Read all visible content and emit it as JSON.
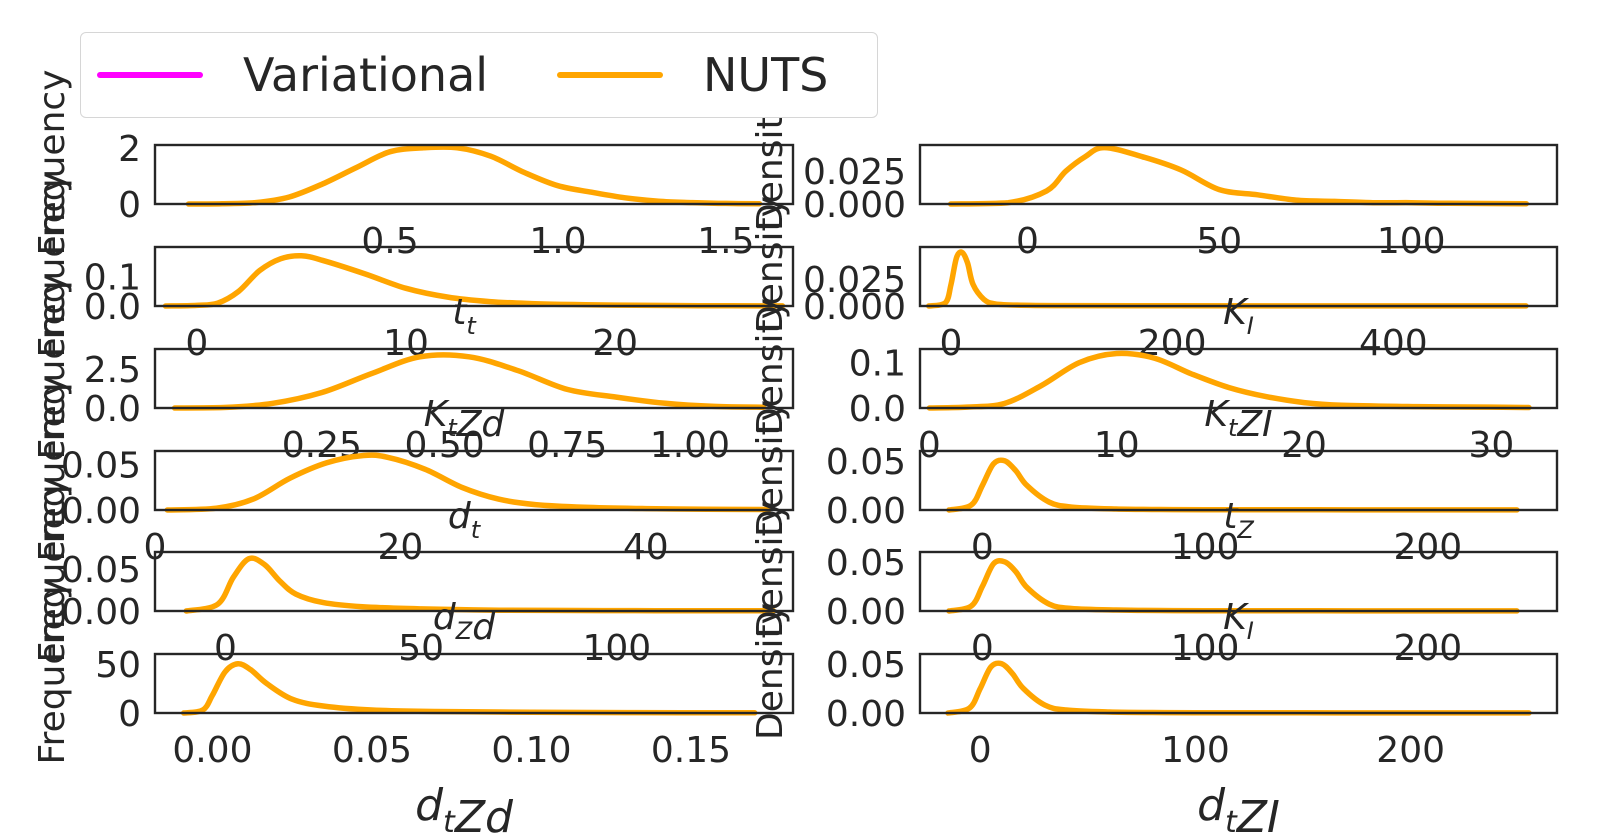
{
  "legend": {
    "items": [
      {
        "name": "Variational",
        "color": "#ff00ff"
      },
      {
        "name": "NUTS",
        "color": "#ffa500"
      }
    ]
  },
  "chart_data": [
    {
      "type": "line",
      "panel": "left-1",
      "xlabel": "",
      "ylabel": "Frequency",
      "xlim": [
        -0.2,
        1.7
      ],
      "ylim": [
        0,
        2.1
      ],
      "xticks": [
        "0.5",
        "1.0",
        "1.5"
      ],
      "yticks": [
        "0",
        "2"
      ],
      "series": [
        {
          "name": "NUTS",
          "x": [
            -0.1,
            0.0,
            0.1,
            0.2,
            0.3,
            0.4,
            0.5,
            0.6,
            0.7,
            0.8,
            0.9,
            1.0,
            1.1,
            1.2,
            1.3,
            1.4,
            1.5,
            1.6
          ],
          "y": [
            0,
            0.01,
            0.05,
            0.25,
            0.72,
            1.3,
            1.86,
            2.0,
            2.0,
            1.7,
            1.12,
            0.65,
            0.42,
            0.22,
            0.1,
            0.05,
            0.02,
            0.01
          ]
        }
      ]
    },
    {
      "type": "line",
      "panel": "right-1",
      "xlabel": "",
      "ylabel": "Density",
      "xlim": [
        -28,
        138
      ],
      "ylim": [
        0,
        0.045
      ],
      "xticks": [
        "0",
        "50",
        "100"
      ],
      "yticks": [
        "0.000",
        "0.025"
      ],
      "series": [
        {
          "name": "NUTS",
          "x": [
            -20,
            -5,
            5,
            10,
            15,
            20,
            30,
            40,
            50,
            60,
            70,
            80,
            90,
            100,
            110,
            130
          ],
          "y": [
            0,
            0.001,
            0.01,
            0.025,
            0.036,
            0.043,
            0.036,
            0.026,
            0.011,
            0.007,
            0.003,
            0.002,
            0.001,
            0.001,
            0.0005,
            0.0002
          ]
        }
      ]
    },
    {
      "type": "line",
      "panel": "left-2",
      "xlabel": "t_t",
      "ylabel": "Frequency",
      "xlim": [
        -2,
        28.5
      ],
      "ylim": [
        0,
        0.2
      ],
      "xticks": [
        "0",
        "10",
        "20"
      ],
      "yticks": [
        "0.0",
        "0.1"
      ],
      "series": [
        {
          "name": "NUTS",
          "x": [
            -1.5,
            0,
            1,
            2,
            3,
            4,
            5,
            6,
            8,
            10,
            12,
            14,
            16,
            18,
            20,
            24,
            28
          ],
          "y": [
            0,
            0.002,
            0.01,
            0.05,
            0.12,
            0.16,
            0.17,
            0.155,
            0.11,
            0.06,
            0.03,
            0.015,
            0.008,
            0.005,
            0.003,
            0.001,
            0.0005
          ]
        }
      ]
    },
    {
      "type": "line",
      "panel": "right-2",
      "xlabel": "K_I",
      "ylabel": "Density",
      "xlim": [
        -28,
        548
      ],
      "ylim": [
        0,
        0.055
      ],
      "xticks": [
        "0",
        "200",
        "400"
      ],
      "yticks": [
        "0.000",
        "0.025"
      ],
      "series": [
        {
          "name": "NUTS",
          "x": [
            -20,
            -5,
            0,
            5,
            10,
            15,
            20,
            30,
            40,
            60,
            100,
            200,
            300,
            400,
            520
          ],
          "y": [
            0,
            0.003,
            0.02,
            0.045,
            0.05,
            0.04,
            0.02,
            0.006,
            0.002,
            0.0008,
            0.0004,
            0.0002,
            0.0001,
            0.0001,
            0.0001
          ]
        }
      ]
    },
    {
      "type": "line",
      "panel": "left-3",
      "xlabel": "K_t Zd",
      "ylabel": "Frequency",
      "xlim": [
        -0.09,
        1.21
      ],
      "ylim": [
        0,
        3.8
      ],
      "xticks": [
        "0.25",
        "0.50",
        "0.75",
        "1.00"
      ],
      "yticks": [
        "0.0",
        "2.5"
      ],
      "series": [
        {
          "name": "NUTS",
          "x": [
            -0.05,
            0.05,
            0.15,
            0.25,
            0.35,
            0.45,
            0.55,
            0.65,
            0.75,
            0.85,
            0.95,
            1.05,
            1.15
          ],
          "y": [
            0,
            0.03,
            0.3,
            1.0,
            2.2,
            3.3,
            3.3,
            2.4,
            1.2,
            0.7,
            0.3,
            0.1,
            0.05
          ]
        }
      ]
    },
    {
      "type": "line",
      "panel": "right-3",
      "xlabel": "K_t ZI",
      "ylabel": "Density",
      "xlim": [
        -0.5,
        33.5
      ],
      "ylim": [
        0,
        0.13
      ],
      "xticks": [
        "0",
        "10",
        "20",
        "30"
      ],
      "yticks": [
        "0.0",
        "0.1"
      ],
      "series": [
        {
          "name": "NUTS",
          "x": [
            0,
            2,
            4,
            6,
            8,
            10,
            12,
            14,
            16,
            18,
            20,
            22,
            26,
            30,
            32
          ],
          "y": [
            0,
            0.002,
            0.01,
            0.05,
            0.1,
            0.12,
            0.11,
            0.075,
            0.045,
            0.025,
            0.012,
            0.006,
            0.003,
            0.002,
            0.001
          ]
        }
      ]
    },
    {
      "type": "line",
      "panel": "left-4",
      "xlabel": "d_t",
      "ylabel": "Frequency",
      "xlim": [
        0,
        52
      ],
      "ylim": [
        0,
        0.065
      ],
      "xticks": [
        "0",
        "20",
        "40"
      ],
      "yticks": [
        "0.00",
        "0.05"
      ],
      "series": [
        {
          "name": "NUTS",
          "x": [
            1,
            5,
            8,
            11,
            14,
            17,
            19,
            22,
            25,
            28,
            31,
            35,
            40,
            45,
            50
          ],
          "y": [
            0,
            0.002,
            0.012,
            0.035,
            0.052,
            0.06,
            0.058,
            0.045,
            0.025,
            0.012,
            0.006,
            0.003,
            0.0015,
            0.0008,
            0.0005
          ]
        }
      ]
    },
    {
      "type": "line",
      "panel": "right-4",
      "xlabel": "t_Z",
      "ylabel": "Density",
      "xlim": [
        -28,
        258
      ],
      "ylim": [
        0,
        0.06
      ],
      "xticks": [
        "0",
        "100",
        "200"
      ],
      "yticks": [
        "0.00",
        "0.05"
      ],
      "series": [
        {
          "name": "NUTS",
          "x": [
            -15,
            -5,
            0,
            5,
            10,
            15,
            20,
            30,
            40,
            60,
            80,
            100,
            150,
            200,
            240
          ],
          "y": [
            0,
            0.005,
            0.025,
            0.047,
            0.05,
            0.04,
            0.025,
            0.008,
            0.003,
            0.001,
            0.0005,
            0.0003,
            0.0002,
            0.0001,
            0.0001
          ]
        }
      ]
    },
    {
      "type": "line",
      "panel": "left-5",
      "xlabel": "d_Z d",
      "ylabel": "Frequency",
      "xlim": [
        -18,
        145
      ],
      "ylim": [
        0,
        0.07
      ],
      "xticks": [
        "0",
        "50",
        "100"
      ],
      "yticks": [
        "0.00",
        "0.05"
      ],
      "series": [
        {
          "name": "NUTS",
          "x": [
            -10,
            -2,
            2,
            6,
            10,
            14,
            18,
            25,
            35,
            50,
            70,
            90,
            110,
            140
          ],
          "y": [
            0,
            0.008,
            0.04,
            0.062,
            0.055,
            0.035,
            0.02,
            0.01,
            0.005,
            0.0025,
            0.001,
            0.0006,
            0.0004,
            0.0002
          ]
        }
      ]
    },
    {
      "type": "line",
      "panel": "right-5",
      "xlabel": "K_I",
      "ylabel": "Density",
      "xlim": [
        -28,
        258
      ],
      "ylim": [
        0,
        0.06
      ],
      "xticks": [
        "0",
        "100",
        "200"
      ],
      "yticks": [
        "0.00",
        "0.05"
      ],
      "series": [
        {
          "name": "NUTS",
          "x": [
            -15,
            -5,
            0,
            5,
            10,
            15,
            20,
            30,
            40,
            60,
            80,
            100,
            150,
            200,
            240
          ],
          "y": [
            0,
            0.005,
            0.025,
            0.048,
            0.05,
            0.04,
            0.024,
            0.007,
            0.0025,
            0.001,
            0.0005,
            0.0003,
            0.0002,
            0.0001,
            0.0001
          ]
        }
      ]
    },
    {
      "type": "line",
      "panel": "left-6",
      "xlabel": "d_t Zd",
      "ylabel": "Frequency",
      "xlim": [
        -0.018,
        0.182
      ],
      "ylim": [
        0,
        60
      ],
      "xticks": [
        "0.00",
        "0.05",
        "0.10",
        "0.15"
      ],
      "yticks": [
        "0",
        "50"
      ],
      "series": [
        {
          "name": "NUTS",
          "x": [
            -0.009,
            -0.003,
            0.0,
            0.004,
            0.008,
            0.012,
            0.017,
            0.025,
            0.035,
            0.05,
            0.07,
            0.1,
            0.13,
            0.17
          ],
          "y": [
            0,
            3,
            18,
            42,
            50,
            44,
            30,
            14,
            7,
            3,
            1.5,
            0.8,
            0.4,
            0.2
          ]
        }
      ]
    },
    {
      "type": "line",
      "panel": "right-6",
      "xlabel": "d_t ZI",
      "ylabel": "Density",
      "xlim": [
        -28,
        268
      ],
      "ylim": [
        0,
        0.06
      ],
      "xticks": [
        "0",
        "100",
        "200"
      ],
      "yticks": [
        "0.00",
        "0.05"
      ],
      "series": [
        {
          "name": "NUTS",
          "x": [
            -15,
            -5,
            0,
            5,
            10,
            15,
            20,
            30,
            40,
            60,
            80,
            100,
            150,
            200,
            255
          ],
          "y": [
            0,
            0.005,
            0.025,
            0.047,
            0.05,
            0.04,
            0.025,
            0.008,
            0.003,
            0.001,
            0.0005,
            0.0003,
            0.0002,
            0.0001,
            0.0001
          ]
        }
      ]
    }
  ]
}
